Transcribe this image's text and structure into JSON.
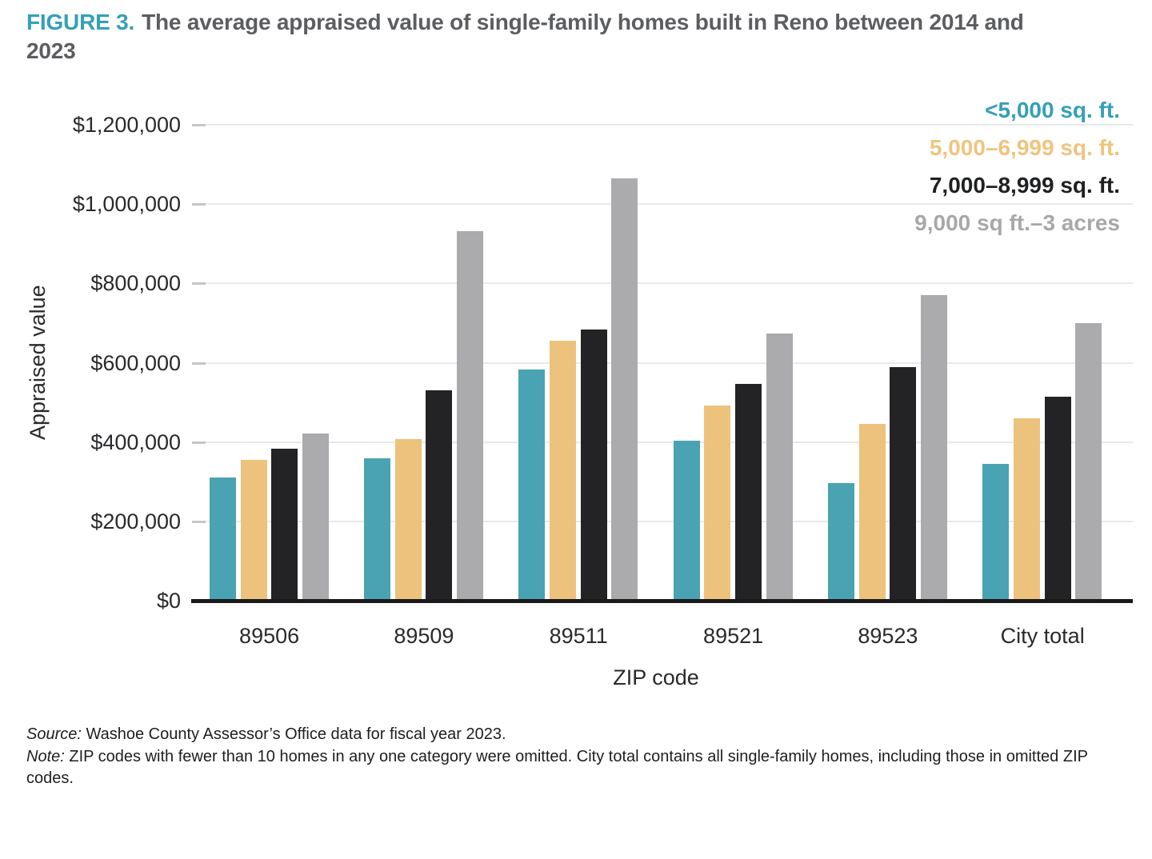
{
  "title": {
    "label": "FIGURE 3.",
    "text": "The average appraised value of single-family homes built in Reno between 2014 and 2023"
  },
  "chart_data": {
    "type": "bar",
    "title": "The average appraised value of single-family homes built in Reno between 2014 and 2023",
    "categories": [
      "89506",
      "89509",
      "89511",
      "89521",
      "89523",
      "City total"
    ],
    "series": [
      {
        "name": "<5,000 sq. ft.",
        "color": "#4aa3b2",
        "legend_color": "#35a0b8",
        "values": [
          310000,
          359000,
          583000,
          404000,
          296000,
          344000
        ]
      },
      {
        "name": "5,000–6,999 sq. ft.",
        "color": "#ecc27c",
        "legend_color": "#efc47e",
        "values": [
          355000,
          408000,
          656000,
          492000,
          446000,
          460000
        ]
      },
      {
        "name": "7,000–8,999 sq. ft.",
        "color": "#232326",
        "legend_color": "#1f2022",
        "values": [
          383000,
          531000,
          683000,
          546000,
          588000,
          514000
        ]
      },
      {
        "name": "9,000 sq ft.–3 acres",
        "color": "#abaaad",
        "legend_color": "#a8a8ab",
        "values": [
          421000,
          931000,
          1064000,
          674000,
          770000,
          700000
        ]
      }
    ],
    "xlabel": "ZIP code",
    "ylabel": "Appraised value",
    "ylim": [
      0,
      1200000
    ],
    "ytick_step": 200000,
    "ytick_labels": [
      "$0",
      "$200,000",
      "$400,000",
      "$600,000",
      "$800,000",
      "$1,000,000",
      "$1,200,000"
    ],
    "grid": true,
    "legend_position": "top-right"
  },
  "footer": {
    "source_label": "Source:",
    "source_text": " Washoe County Assessor’s Office data for fiscal year 2023.",
    "note_label": "Note:",
    "note_text": " ZIP codes with fewer than 10 homes in any one category were omitted. City total contains all single-family homes, including those in omitted ZIP codes."
  },
  "colors": {
    "figure_label": "#35a0b8",
    "title_text": "#5c5d60",
    "gridline": "#e9e9eb",
    "tick": "#c5c6c8",
    "baseline": "#1a1a1a",
    "axis_text": "#2a2a2d"
  }
}
